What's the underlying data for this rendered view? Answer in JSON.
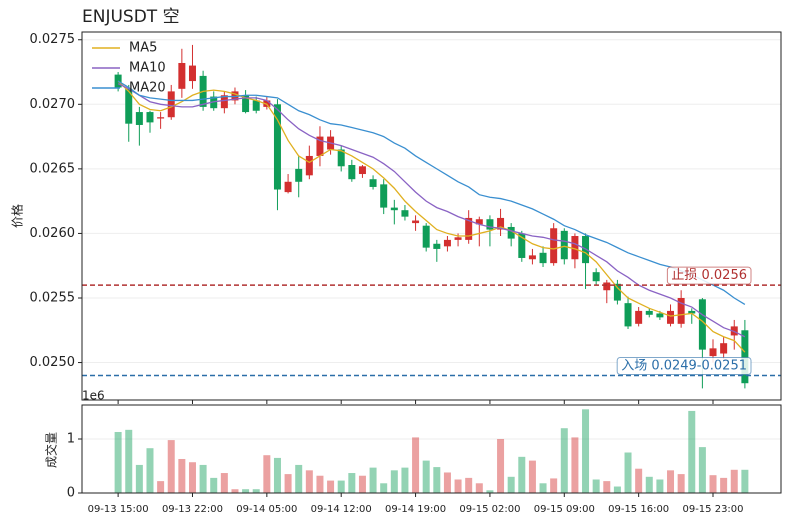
{
  "chart_data": {
    "type": "candlestick",
    "title": "ENJUSDT  空",
    "ylabel": "价格",
    "xlim": [
      -3.4,
      62.4
    ],
    "ylim": [
      0.02471,
      0.02756
    ],
    "yticks": [
      {
        "value": 0.025,
        "label": "0.0250"
      },
      0.0255,
      {
        "value": 0.026,
        "label": "0.0260"
      },
      0.0265,
      {
        "value": 0.027,
        "label": "0.0270"
      },
      0.0275
    ],
    "grid": true,
    "legend": "upper left",
    "up_color": "#d32f2f",
    "down_color": "#0f9d58",
    "categories": [
      "09-13 15:00",
      null,
      null,
      null,
      null,
      null,
      null,
      "09-13 22:00",
      null,
      null,
      null,
      null,
      null,
      null,
      "09-14 05:00",
      null,
      null,
      null,
      null,
      null,
      null,
      "09-14 12:00",
      null,
      null,
      null,
      null,
      null,
      null,
      "09-14 19:00",
      null,
      null,
      null,
      null,
      null,
      null,
      "09-15 02:00",
      null,
      null,
      null,
      null,
      null,
      null,
      "09-15 09:00",
      null,
      null,
      null,
      null,
      null,
      null,
      "09-15 16:00",
      null,
      null,
      null,
      null,
      null,
      null,
      "09-15 23:00",
      null,
      null,
      null
    ],
    "open": [
      0.02723,
      0.02712,
      0.02694,
      0.02694,
      0.02689,
      0.0269,
      0.02712,
      0.02718,
      0.02722,
      0.02706,
      0.02697,
      0.02703,
      0.02707,
      0.02703,
      0.02698,
      0.027,
      0.02632,
      0.0265,
      0.02645,
      0.0266,
      0.02665,
      0.02665,
      0.02653,
      0.02646,
      0.02642,
      0.02638,
      0.0262,
      0.02618,
      0.02608,
      0.02606,
      0.02592,
      0.0259,
      0.02595,
      0.02595,
      0.02607,
      0.02611,
      0.02603,
      0.02605,
      0.026,
      0.0258,
      0.02585,
      0.02577,
      0.02602,
      0.0258,
      0.02598,
      0.0257,
      0.02556,
      0.02561,
      0.02546,
      0.0253,
      0.0254,
      0.02538,
      0.0253,
      0.0253,
      0.0254,
      0.02549,
      0.02505,
      0.02507,
      0.02521,
      0.02525
    ],
    "high": [
      0.02725,
      0.02715,
      0.02698,
      0.02695,
      0.02694,
      0.02715,
      0.02743,
      0.02746,
      0.02726,
      0.0271,
      0.0271,
      0.02713,
      0.02711,
      0.02706,
      0.02706,
      0.02704,
      0.02646,
      0.0266,
      0.02668,
      0.02683,
      0.0268,
      0.02668,
      0.02657,
      0.02653,
      0.02645,
      0.02642,
      0.02626,
      0.02622,
      0.02614,
      0.02608,
      0.02595,
      0.02598,
      0.026,
      0.02618,
      0.02613,
      0.02614,
      0.02619,
      0.02608,
      0.02602,
      0.02588,
      0.0259,
      0.02608,
      0.02604,
      0.026,
      0.026,
      0.02573,
      0.02564,
      0.02564,
      0.02551,
      0.02543,
      0.02542,
      0.0254,
      0.02545,
      0.02556,
      0.02542,
      0.0255,
      0.02518,
      0.0252,
      0.02533,
      0.02533
    ],
    "low": [
      0.0271,
      0.02671,
      0.02668,
      0.02678,
      0.02681,
      0.02688,
      0.02705,
      0.02712,
      0.02695,
      0.02695,
      0.02693,
      0.027,
      0.02693,
      0.02693,
      0.02696,
      0.02618,
      0.02631,
      0.02628,
      0.02642,
      0.02652,
      0.02661,
      0.02648,
      0.0264,
      0.02643,
      0.02634,
      0.02615,
      0.02607,
      0.0261,
      0.02602,
      0.02586,
      0.02578,
      0.02586,
      0.0259,
      0.02592,
      0.0259,
      0.0259,
      0.02598,
      0.0259,
      0.02578,
      0.02576,
      0.02574,
      0.02575,
      0.02576,
      0.02573,
      0.02557,
      0.0256,
      0.02546,
      0.02545,
      0.02526,
      0.02528,
      0.02535,
      0.02533,
      0.02528,
      0.02527,
      0.0253,
      0.0248,
      0.025,
      0.02503,
      0.0251,
      0.0248
    ],
    "close": [
      0.02713,
      0.02685,
      0.02684,
      0.02686,
      0.0269,
      0.0271,
      0.02732,
      0.0273,
      0.02698,
      0.02697,
      0.02707,
      0.0271,
      0.02694,
      0.02695,
      0.02703,
      0.02634,
      0.0264,
      0.0264,
      0.0266,
      0.02675,
      0.02675,
      0.02652,
      0.02642,
      0.02652,
      0.02636,
      0.0262,
      0.02618,
      0.02613,
      0.0261,
      0.02589,
      0.02588,
      0.02595,
      0.02597,
      0.02612,
      0.02611,
      0.02603,
      0.02612,
      0.02596,
      0.02581,
      0.02583,
      0.02577,
      0.02604,
      0.0258,
      0.02598,
      0.02577,
      0.02563,
      0.02562,
      0.02548,
      0.02528,
      0.0254,
      0.02537,
      0.02535,
      0.0254,
      0.0255,
      0.02538,
      0.0251,
      0.02511,
      0.02515,
      0.02528,
      0.02484
    ],
    "series": [
      {
        "name": "MA5",
        "color": "#e0b020",
        "values": [
          0.02718,
          0.0271,
          0.027,
          0.02696,
          0.02695,
          0.02698,
          0.02702,
          0.02707,
          0.0271,
          0.02711,
          0.0271,
          0.02708,
          0.02705,
          0.02703,
          0.027,
          0.02688,
          0.02672,
          0.0266,
          0.02655,
          0.0266,
          0.02665,
          0.02664,
          0.0266,
          0.02655,
          0.0265,
          0.02643,
          0.02635,
          0.02625,
          0.02617,
          0.0261,
          0.02603,
          0.026,
          0.02598,
          0.02598,
          0.026,
          0.02602,
          0.02605,
          0.02602,
          0.02597,
          0.02592,
          0.02589,
          0.02588,
          0.0259,
          0.02588,
          0.02585,
          0.02578,
          0.02568,
          0.02558,
          0.0255,
          0.02546,
          0.02542,
          0.02539,
          0.02536,
          0.02537,
          0.02538,
          0.02532,
          0.02524,
          0.0252,
          0.02517,
          0.02508
        ]
      },
      {
        "name": "MA10",
        "color": "#8a63c4",
        "values": [
          0.02716,
          0.02712,
          0.02707,
          0.02702,
          0.027,
          0.02699,
          0.02698,
          0.02698,
          0.027,
          0.02702,
          0.02703,
          0.02704,
          0.02705,
          0.02705,
          0.02703,
          0.02696,
          0.02688,
          0.02681,
          0.02676,
          0.02672,
          0.0267,
          0.02668,
          0.02665,
          0.02662,
          0.02659,
          0.02654,
          0.02648,
          0.0264,
          0.02632,
          0.02625,
          0.0262,
          0.02617,
          0.02613,
          0.0261,
          0.02607,
          0.02605,
          0.02604,
          0.02602,
          0.026,
          0.02598,
          0.02597,
          0.02595,
          0.02594,
          0.02592,
          0.02588,
          0.02583,
          0.02578,
          0.02571,
          0.02566,
          0.0256,
          0.02556,
          0.02553,
          0.0255,
          0.02546,
          0.02543,
          0.02537,
          0.02532,
          0.02527,
          0.02524,
          0.0252
        ]
      },
      {
        "name": "MA20",
        "color": "#3a8fd0",
        "values": [
          0.02718,
          0.02713,
          0.02707,
          0.02705,
          0.02704,
          0.02703,
          0.02703,
          0.02703,
          0.02704,
          0.02705,
          0.02706,
          0.02706,
          0.02707,
          0.02707,
          0.02706,
          0.02705,
          0.027,
          0.02695,
          0.02692,
          0.02688,
          0.02685,
          0.02684,
          0.02682,
          0.0268,
          0.02678,
          0.02675,
          0.0267,
          0.02666,
          0.0266,
          0.02655,
          0.0265,
          0.02645,
          0.0264,
          0.02636,
          0.0263,
          0.02628,
          0.02627,
          0.02625,
          0.02622,
          0.02619,
          0.02615,
          0.02611,
          0.02606,
          0.02603,
          0.02599,
          0.02596,
          0.02593,
          0.02589,
          0.02585,
          0.02582,
          0.02579,
          0.02576,
          0.02574,
          0.02571,
          0.02568,
          0.02564,
          0.0256,
          0.02556,
          0.0255,
          0.02545
        ]
      }
    ],
    "hlines": [
      {
        "value": 0.0256,
        "label": "止损 0.0256",
        "color": "#b03030"
      },
      {
        "value": 0.0249,
        "label": "入场 0.0249-0.0251",
        "color": "#2b6ea8"
      }
    ],
    "volume": {
      "ylabel": "成交量",
      "offset_label": "1e6",
      "ylim": [
        0,
        1630000
      ],
      "yticks": [
        0,
        {
          "value": 1000000,
          "label": "1"
        }
      ],
      "values": [
        1130000,
        1170000,
        520000,
        830000,
        220000,
        980000,
        630000,
        570000,
        520000,
        280000,
        370000,
        70000,
        70000,
        70000,
        700000,
        650000,
        350000,
        520000,
        420000,
        320000,
        230000,
        230000,
        370000,
        320000,
        470000,
        180000,
        420000,
        470000,
        1030000,
        600000,
        480000,
        380000,
        250000,
        280000,
        180000,
        50000,
        1000000,
        300000,
        670000,
        600000,
        180000,
        270000,
        1200000,
        1030000,
        1550000,
        250000,
        220000,
        120000,
        750000,
        450000,
        300000,
        250000,
        420000,
        350000,
        1520000,
        850000,
        330000,
        280000,
        430000,
        430000
      ]
    }
  }
}
